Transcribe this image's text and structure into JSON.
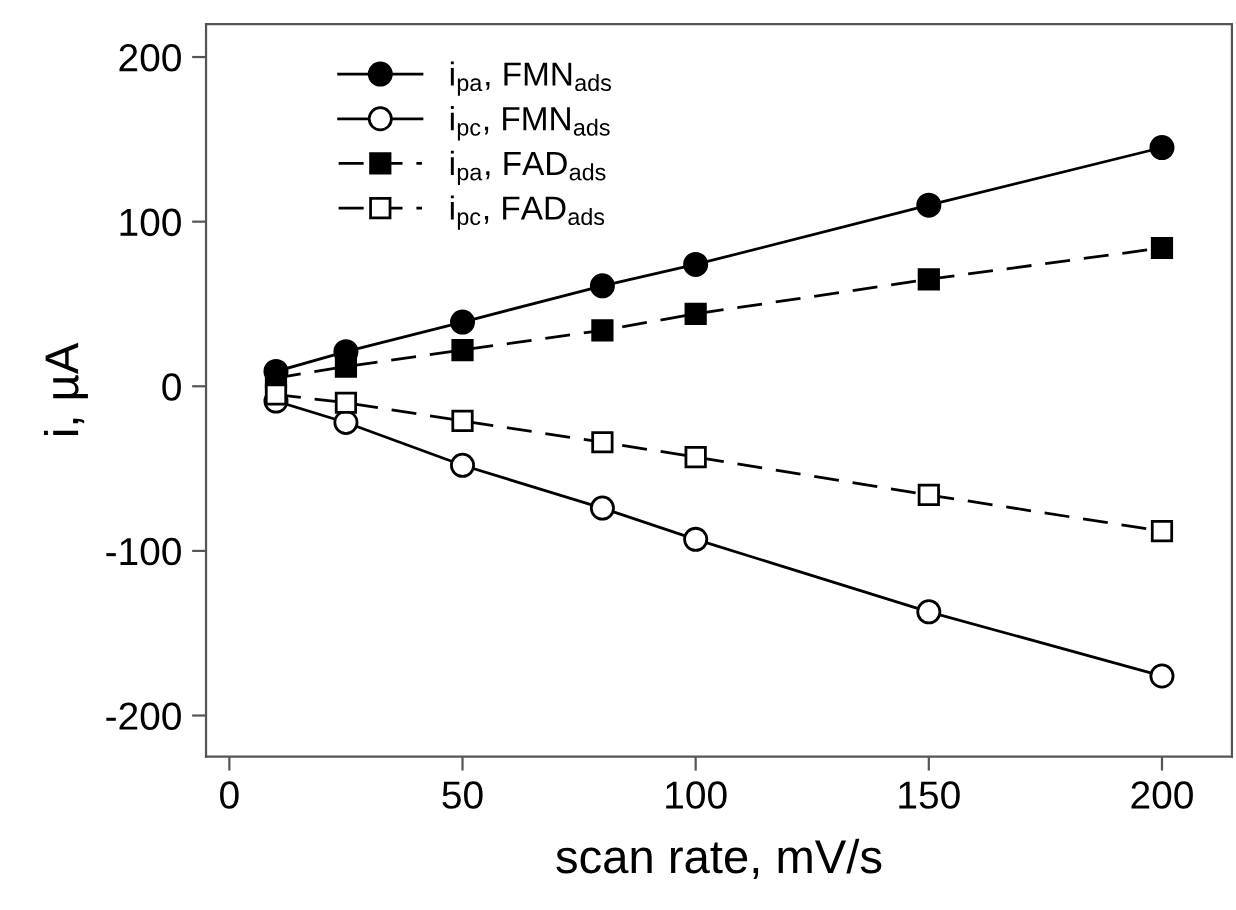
{
  "chart_data": {
    "type": "line",
    "xlabel": "scan rate, mV/s",
    "ylabel": "i, µA",
    "xlim": [
      -5,
      215
    ],
    "xticks": [
      0,
      50,
      100,
      150,
      200
    ],
    "ylim": [
      -225,
      220
    ],
    "yticks": [
      -200,
      -100,
      0,
      100,
      200
    ],
    "grid": false,
    "legend": "top left",
    "x": [
      10,
      25,
      50,
      80,
      100,
      150,
      200
    ],
    "series": [
      {
        "name": "i$_{pa}$, FMN$_{ads}$",
        "color": "#000000",
        "marker": "circle",
        "line_style": "solid",
        "values": [
          9,
          21,
          39,
          61,
          74,
          110,
          145
        ]
      },
      {
        "name": "i$_{pc}$, FMN$_{ads}$",
        "color": "#ffffff",
        "marker": "circle",
        "line_style": "solid",
        "values": [
          -9,
          -22,
          -48,
          -74,
          -93,
          -137,
          -176
        ]
      },
      {
        "name": "i$_{pa}$, FAD$_{ads}$",
        "color": "#000000",
        "marker": "square",
        "line_style": "dashed",
        "values": [
          5,
          12,
          22,
          34,
          44,
          65,
          84
        ]
      },
      {
        "name": "i$_{pc}$, FAD$_{ads}$",
        "color": "#ffffff",
        "marker": "square",
        "line_style": "dashed",
        "values": [
          -5,
          -10,
          -21,
          -34,
          -43,
          -66,
          -88
        ]
      }
    ]
  }
}
